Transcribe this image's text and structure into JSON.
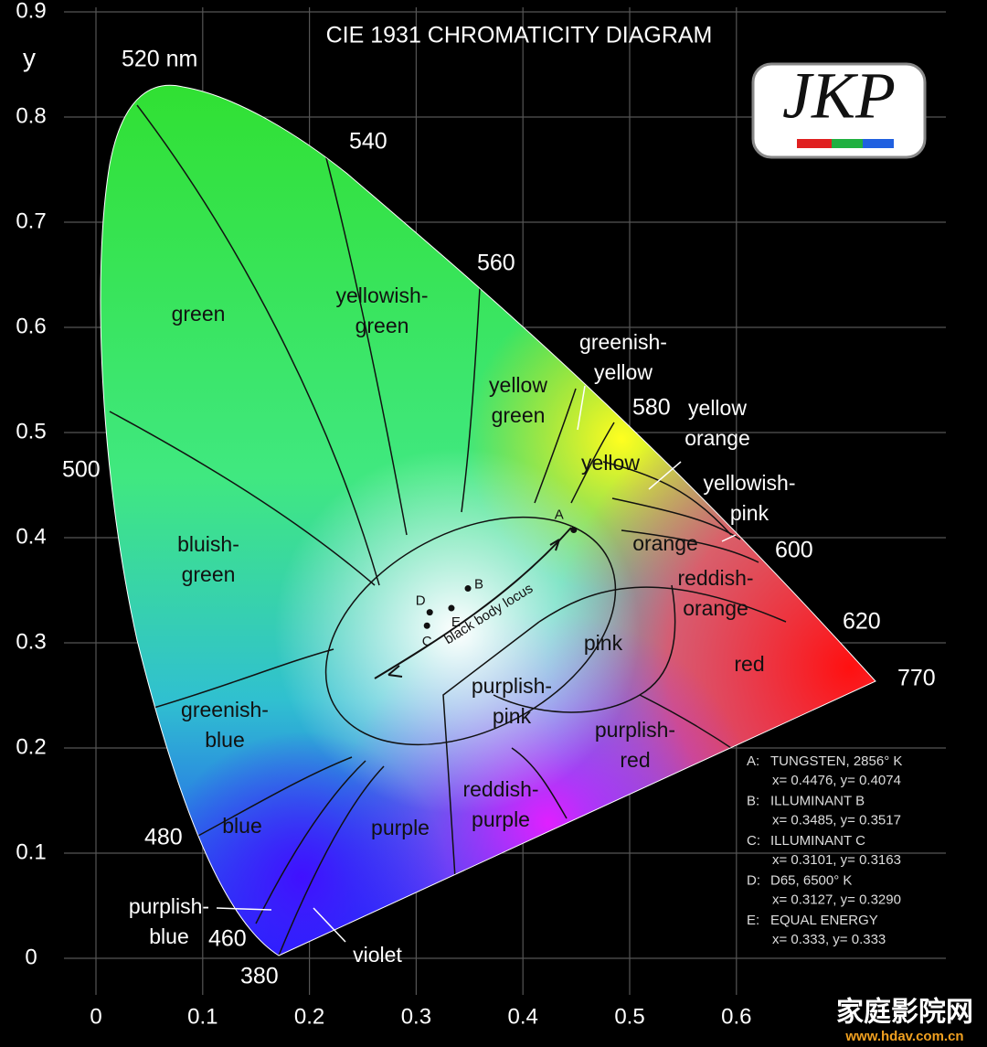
{
  "title": "CIE 1931 CHROMATICITY DIAGRAM",
  "y_axis_label": "y",
  "xticks": [
    0,
    0.1,
    0.2,
    0.3,
    0.4,
    0.5,
    0.6
  ],
  "yticks": [
    0,
    0.1,
    0.2,
    0.3,
    0.4,
    0.5,
    0.6,
    0.7,
    0.8,
    0.9
  ],
  "logo": "JKP",
  "wavelengths": [
    "520 nm",
    "540",
    "560",
    "580",
    "600",
    "620",
    "770",
    "500",
    "480",
    "460",
    "380"
  ],
  "regions": [
    [
      "green"
    ],
    [
      "yellowish-",
      "green"
    ],
    [
      "yellow",
      "green"
    ],
    [
      "greenish-",
      "yellow"
    ],
    [
      "yellow"
    ],
    [
      "yellow",
      "orange"
    ],
    [
      "yellowish-",
      "pink"
    ],
    [
      "orange"
    ],
    [
      "reddish-",
      "orange"
    ],
    [
      "bluish-",
      "green"
    ],
    [
      "pink"
    ],
    [
      "red"
    ],
    [
      "purplish-",
      "pink"
    ],
    [
      "purplish-",
      "red"
    ],
    [
      "greenish-",
      "blue"
    ],
    [
      "blue"
    ],
    [
      "purple"
    ],
    [
      "reddish-",
      "purple"
    ],
    [
      "purplish-",
      "blue"
    ],
    [
      "violet"
    ]
  ],
  "locus_label": "black body locus",
  "points": [
    {
      "letter": "A",
      "key": "A:",
      "name": "TUNGSTEN, 2856° K",
      "coords": "x= 0.4476, y= 0.4074",
      "x": 0.4476,
      "y": 0.4074
    },
    {
      "letter": "B",
      "key": "B:",
      "name": "ILLUMINANT B",
      "coords": "x= 0.3485, y= 0.3517",
      "x": 0.3485,
      "y": 0.3517
    },
    {
      "letter": "C",
      "key": "C:",
      "name": "ILLUMINANT C",
      "coords": "x= 0.3101, y= 0.3163",
      "x": 0.3101,
      "y": 0.3163
    },
    {
      "letter": "D",
      "key": "D:",
      "name": "D65, 6500° K",
      "coords": "x= 0.3127, y= 0.3290",
      "x": 0.3127,
      "y": 0.329
    },
    {
      "letter": "E",
      "key": "E:",
      "name": "EQUAL ENERGY",
      "coords": "x= 0.333, y= 0.333",
      "x": 0.333,
      "y": 0.333
    }
  ],
  "watermark": {
    "site": "家庭影院网",
    "url": "www.hdav.com.cn"
  }
}
